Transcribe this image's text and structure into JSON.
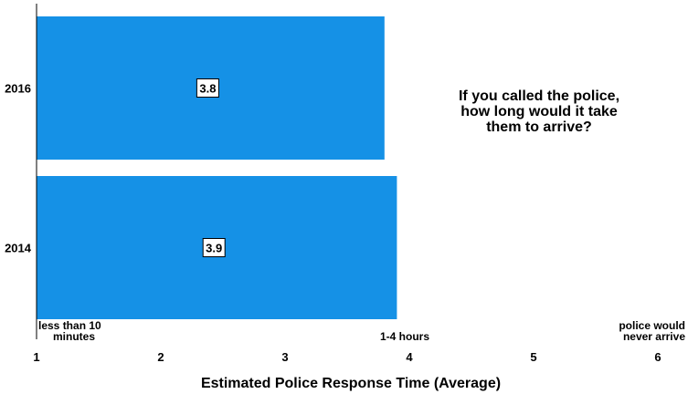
{
  "chart_data": {
    "type": "bar",
    "orientation": "horizontal",
    "categories": [
      "2016",
      "2014"
    ],
    "values": [
      3.8,
      3.9
    ],
    "data_labels": [
      "3.8",
      "3.9"
    ],
    "xlabel": "Estimated Police Response Time (Average)",
    "ylabel": "",
    "xlim": [
      1,
      6
    ],
    "xticks": [
      "1",
      "2",
      "3",
      "4",
      "5",
      "6"
    ],
    "x_annotations": [
      {
        "at": 1,
        "lines": [
          "less than 10",
          "minutes"
        ]
      },
      {
        "at": 4,
        "lines": [
          "1-4 hours"
        ]
      },
      {
        "at": 6,
        "lines": [
          "police would",
          "never arrive"
        ]
      }
    ],
    "note_lines": [
      "If you called the police,",
      "how long would it take",
      "them to arrive?"
    ],
    "bar_color": "#1591e6",
    "grid": false,
    "legend": "none"
  }
}
